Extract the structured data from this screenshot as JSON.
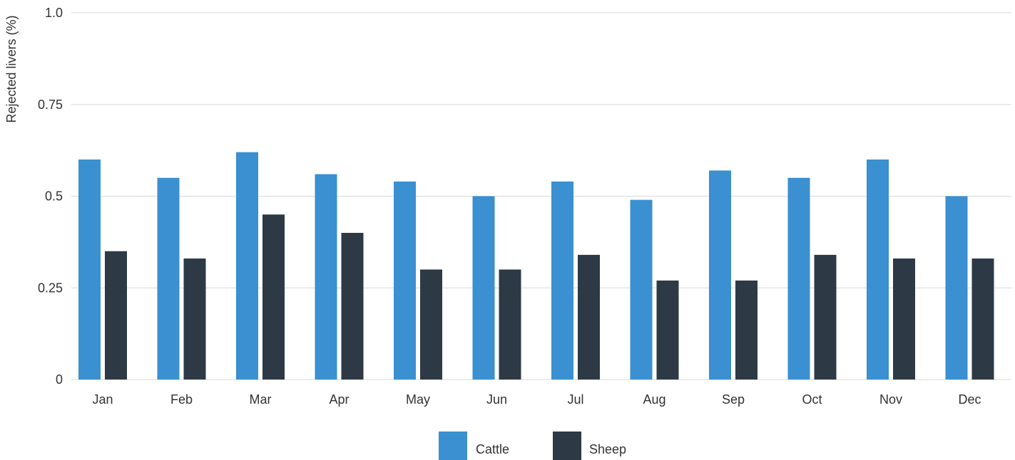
{
  "chart_data": {
    "type": "bar",
    "ylabel": "Rejected livers (%)",
    "xlabel": "",
    "ylim": [
      0,
      1.0
    ],
    "yticks": [
      {
        "value": 0,
        "label": "0"
      },
      {
        "value": 0.25,
        "label": "0.25"
      },
      {
        "value": 0.5,
        "label": "0.5"
      },
      {
        "value": 0.75,
        "label": "0.75"
      },
      {
        "value": 1.0,
        "label": "1.0"
      }
    ],
    "grid": true,
    "legend_position": "bottom",
    "categories": [
      "Jan",
      "Feb",
      "Mar",
      "Apr",
      "May",
      "Jun",
      "Jul",
      "Aug",
      "Sep",
      "Oct",
      "Nov",
      "Dec"
    ],
    "series": [
      {
        "name": "Cattle",
        "color": "#3a90d0",
        "values": [
          0.6,
          0.55,
          0.62,
          0.56,
          0.54,
          0.5,
          0.54,
          0.49,
          0.57,
          0.55,
          0.6,
          0.5
        ]
      },
      {
        "name": "Sheep",
        "color": "#2d3a46",
        "values": [
          0.35,
          0.33,
          0.45,
          0.4,
          0.3,
          0.3,
          0.34,
          0.27,
          0.27,
          0.34,
          0.33,
          0.33
        ]
      }
    ]
  }
}
